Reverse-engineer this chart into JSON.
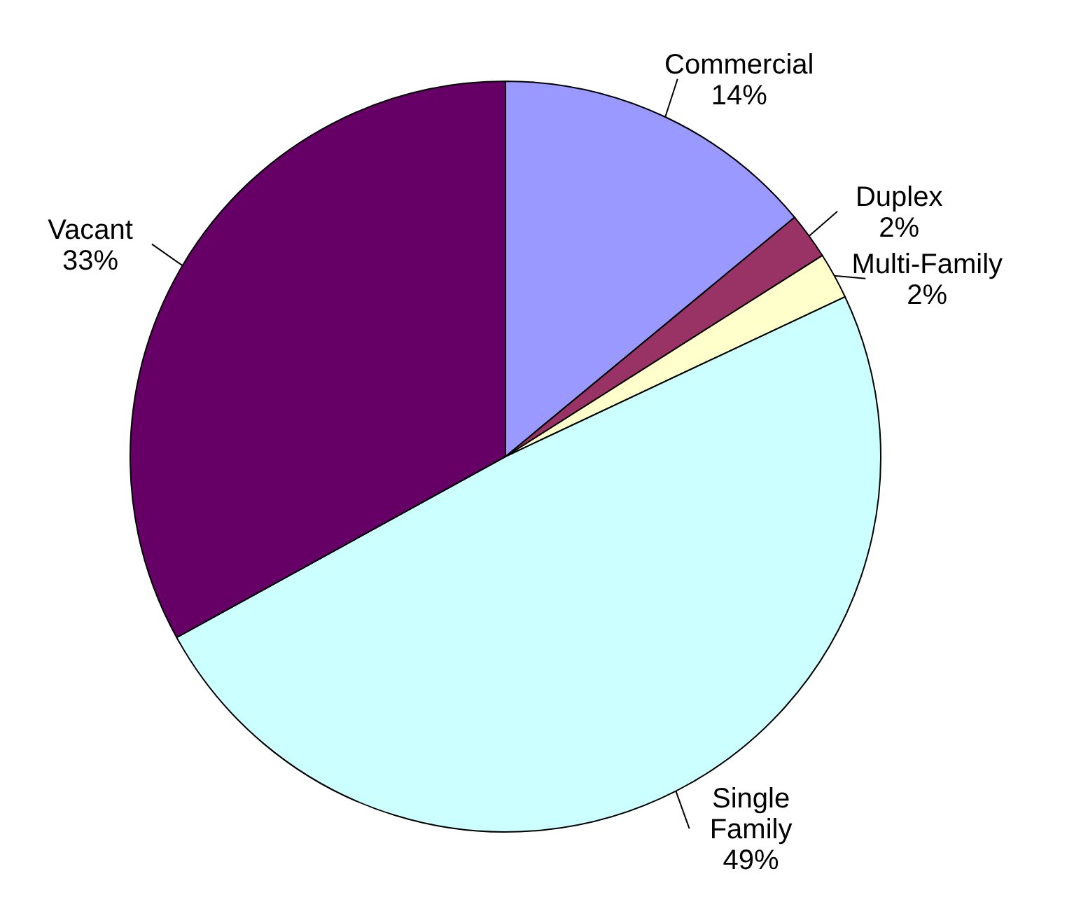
{
  "chart_data": {
    "type": "pie",
    "categories": [
      "Commercial",
      "Duplex",
      "Multi-Family",
      "Single Family",
      "Vacant"
    ],
    "values": [
      14,
      2,
      2,
      49,
      33
    ],
    "colors": [
      "#9999ff",
      "#993366",
      "#ffffcc",
      "#ccffff",
      "#660066"
    ],
    "value_labels": [
      "14%",
      "2%",
      "2%",
      "49%",
      "33%"
    ]
  }
}
